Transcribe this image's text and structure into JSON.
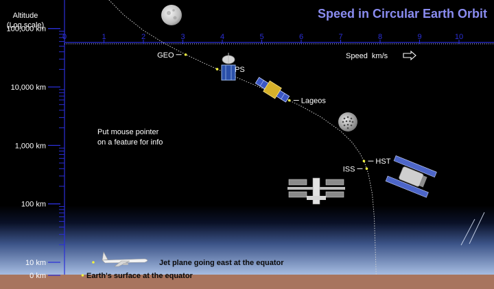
{
  "chart_data": {
    "type": "line",
    "title": "Speed in Circular Earth Orbit",
    "xlabel": "Speed  km/s",
    "ylabel": [
      "Altitude",
      "(Log scale)"
    ],
    "xlim": [
      0,
      11
    ],
    "x_ticks": [
      "0",
      "1",
      "2",
      "3",
      "4",
      "5",
      "6",
      "7",
      "8",
      "9",
      "10"
    ],
    "yscale": "log",
    "y_ticks": [
      {
        "label": "100,000 km",
        "altitude_km": 100000
      },
      {
        "label": "10,000 km",
        "altitude_km": 10000
      },
      {
        "label": "1,000 km",
        "altitude_km": 1000
      },
      {
        "label": "100 km",
        "altitude_km": 100
      },
      {
        "label": "10 km",
        "altitude_km": 10
      },
      {
        "label": "0 km",
        "altitude_km": 0
      }
    ],
    "series": [
      {
        "points": [
          {
            "speed_km_s": 1.0,
            "altitude_km": 378000
          },
          {
            "speed_km_s": 1.5,
            "altitude_km": 171000
          },
          {
            "speed_km_s": 2.0,
            "altitude_km": 93000
          },
          {
            "speed_km_s": 2.5,
            "altitude_km": 57400
          },
          {
            "speed_km_s": 3.0,
            "altitude_km": 37900
          },
          {
            "speed_km_s": 3.5,
            "altitude_km": 26200
          },
          {
            "speed_km_s": 4.0,
            "altitude_km": 18500
          },
          {
            "speed_km_s": 4.5,
            "altitude_km": 13300
          },
          {
            "speed_km_s": 5.0,
            "altitude_km": 9570
          },
          {
            "speed_km_s": 5.5,
            "altitude_km": 6800
          },
          {
            "speed_km_s": 6.0,
            "altitude_km": 4700
          },
          {
            "speed_km_s": 6.5,
            "altitude_km": 3060
          },
          {
            "speed_km_s": 7.0,
            "altitude_km": 1760
          },
          {
            "speed_km_s": 7.3,
            "altitude_km": 1110
          },
          {
            "speed_km_s": 7.5,
            "altitude_km": 710
          },
          {
            "speed_km_s": 7.6,
            "altitude_km": 520
          },
          {
            "speed_km_s": 7.7,
            "altitude_km": 330
          },
          {
            "speed_km_s": 7.8,
            "altitude_km": 150
          },
          {
            "speed_km_s": 7.85,
            "altitude_km": 60
          },
          {
            "speed_km_s": 7.9,
            "altitude_km": 0
          }
        ]
      }
    ],
    "annotations": [
      {
        "label": "The Moon",
        "speed_km_s": 1.0,
        "altitude_km": 384400,
        "side": "right",
        "object": "moon"
      },
      {
        "label": "GEO",
        "speed_km_s": 3.07,
        "altitude_km": 35786,
        "side": "left",
        "object": "geo-satellite"
      },
      {
        "label": "GPS",
        "speed_km_s": 3.87,
        "altitude_km": 20200,
        "side": "right",
        "object": "gps-satellite"
      },
      {
        "label": "Lageos",
        "speed_km_s": 5.7,
        "altitude_km": 5900,
        "side": "right",
        "object": "lageos"
      },
      {
        "label": "HST",
        "speed_km_s": 7.59,
        "altitude_km": 540,
        "side": "right",
        "object": "hubble"
      },
      {
        "label": "ISS",
        "speed_km_s": 7.66,
        "altitude_km": 400,
        "side": "left",
        "object": "iss"
      },
      {
        "label": "Jet plane going east at the equator",
        "speed_km_s": 0.73,
        "altitude_km": 10,
        "side": "right",
        "object": "jet-plane"
      },
      {
        "label": "Earth's surface at the equator",
        "speed_km_s": 0.46,
        "altitude_km": 0,
        "side": "right",
        "object": "earth-surface"
      }
    ],
    "note": [
      "Put mouse pointer",
      "on a feature for info"
    ],
    "grid": false,
    "colors": {
      "title": "#8a8cf0",
      "text": "#ffffff",
      "axis": "#2b2fd8",
      "curve": "#cfcfcf",
      "marker": "#f2f240",
      "ground": "#a8745e",
      "sky_top": "#000000",
      "sky_bottom": "#a9bfe4",
      "surface_text": "#0a0a0a"
    }
  }
}
